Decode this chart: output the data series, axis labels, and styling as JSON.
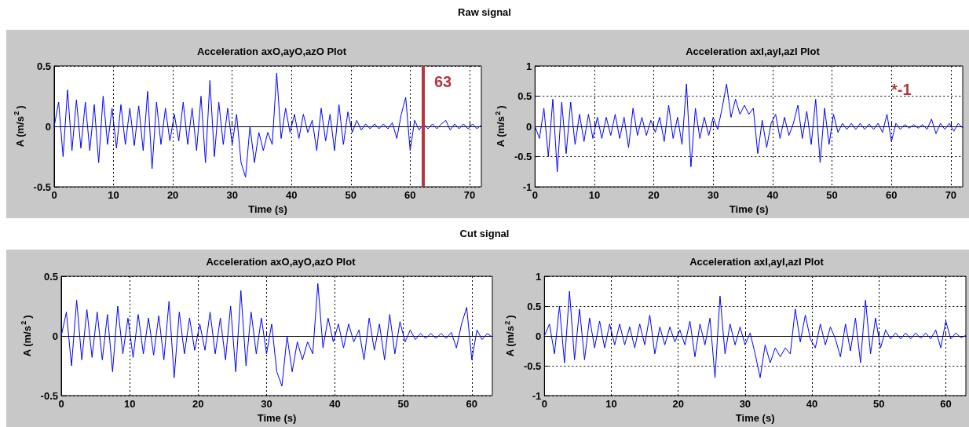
{
  "chart_data": [
    {
      "type": "other",
      "title": "Raw signal"
    },
    {
      "type": "line",
      "title": "Acceleration axO,ayO,azO Plot",
      "xlabel": "Time (s)",
      "ylabel": "A (m/s$^{2}$)",
      "xlim": [
        0,
        72
      ],
      "xticks": [
        0,
        10,
        20,
        30,
        40,
        50,
        60,
        70
      ],
      "ylim": [
        -0.5,
        0.5
      ],
      "yticks": [
        -0.5,
        0,
        0.5
      ],
      "grid": true,
      "ref_lines": [
        {
          "axis": "x",
          "value": 62.2,
          "color": "#b5373f"
        }
      ],
      "annotations": [
        "63"
      ],
      "series": [
        {
          "color": "#0000ff",
          "x": [
            0,
            0.75,
            1.5,
            2.25,
            3,
            3.75,
            4.5,
            5.25,
            6,
            6.75,
            7.5,
            8.25,
            9,
            9.75,
            10.5,
            11.25,
            12,
            12.75,
            13.5,
            14.25,
            15,
            15.75,
            16.5,
            17.25,
            18,
            18.75,
            19.5,
            20.25,
            21,
            21.75,
            22.5,
            23.25,
            24,
            24.75,
            25.5,
            26.25,
            27,
            27.75,
            28.5,
            29.25,
            30,
            30.75,
            31.5,
            32.25,
            33,
            33.75,
            34.5,
            35.25,
            36,
            36.75,
            37.5,
            38.25,
            39,
            39.75,
            40.5,
            41.25,
            42,
            42.75,
            43.5,
            44.25,
            45,
            45.75,
            46.5,
            47.25,
            48,
            48.75,
            49.5,
            50.25,
            51,
            51.75,
            52.5,
            53.25,
            54,
            54.75,
            55.5,
            56.25,
            57,
            57.75,
            58.5,
            59.25,
            60,
            60.75,
            61.5,
            62.25,
            63,
            63.75,
            64.5,
            65.25,
            66,
            66.75,
            67.5,
            68.25,
            69,
            69.75,
            70.5,
            71.25,
            72
          ],
          "values": [
            0,
            0.2,
            -0.25,
            0.3,
            -0.2,
            0.22,
            -0.18,
            0.2,
            -0.2,
            0.18,
            -0.3,
            0.25,
            -0.15,
            0.15,
            -0.18,
            0.18,
            -0.15,
            0.15,
            -0.16,
            0.17,
            -0.2,
            0.29,
            -0.35,
            0.2,
            -0.15,
            0.15,
            -0.12,
            0.1,
            -0.12,
            0.2,
            -0.15,
            0.15,
            -0.2,
            0.25,
            -0.3,
            0.38,
            -0.25,
            0.2,
            -0.15,
            0.15,
            -0.15,
            0.1,
            -0.3,
            -0.42,
            0,
            -0.3,
            -0.05,
            -0.2,
            -0.05,
            -0.15,
            0.44,
            -0.1,
            0.15,
            -0.05,
            0.1,
            -0.1,
            0.1,
            -0.05,
            0.05,
            -0.2,
            0.15,
            -0.12,
            0.1,
            -0.2,
            0.18,
            -0.15,
            0.12,
            -0.05,
            0.05,
            -0.03,
            0.02,
            -0.02,
            0.02,
            -0.02,
            0.02,
            -0.02,
            0.03,
            -0.1,
            0.1,
            0.24,
            -0.2,
            0.05,
            -0.03,
            0.02,
            -0.02,
            0.02,
            -0.02,
            0.02,
            0.05,
            -0.03,
            0.02,
            -0.02,
            0.02,
            -0.02,
            0.02,
            -0.02,
            0.01
          ]
        }
      ]
    },
    {
      "type": "line",
      "title": "Acceleration axI,ayI,azI Plot",
      "xlabel": "Time (s)",
      "ylabel": "A (m/s$^{2}$)",
      "xlim": [
        0,
        72
      ],
      "xticks": [
        0,
        10,
        20,
        30,
        40,
        50,
        60,
        70
      ],
      "ylim": [
        -1,
        1
      ],
      "yticks": [
        -1,
        -0.5,
        0,
        0.5,
        1
      ],
      "grid": true,
      "annotations": [
        "*-1"
      ],
      "series": [
        {
          "color": "#0000ff",
          "x": [
            0,
            0.75,
            1.5,
            2.25,
            3,
            3.75,
            4.5,
            5.25,
            6,
            6.75,
            7.5,
            8.25,
            9,
            9.75,
            10.5,
            11.25,
            12,
            12.75,
            13.5,
            14.25,
            15,
            15.75,
            16.5,
            17.25,
            18,
            18.75,
            19.5,
            20.25,
            21,
            21.75,
            22.5,
            23.25,
            24,
            24.75,
            25.5,
            26.25,
            27,
            27.75,
            28.5,
            29.25,
            30,
            30.75,
            31.5,
            32.25,
            33,
            33.75,
            34.5,
            35.25,
            36,
            36.75,
            37.5,
            38.25,
            39,
            39.75,
            40.5,
            41.25,
            42,
            42.75,
            43.5,
            44.25,
            45,
            45.75,
            46.5,
            47.25,
            48,
            48.75,
            49.5,
            50.25,
            51,
            51.75,
            52.5,
            53.25,
            54,
            54.75,
            55.5,
            56.25,
            57,
            57.75,
            58.5,
            59.25,
            60,
            60.75,
            61.5,
            62.25,
            63,
            63.75,
            64.5,
            65.25,
            66,
            66.75,
            67.5,
            68.25,
            69,
            69.75,
            70.5,
            71.25,
            72
          ],
          "values": [
            0,
            -0.2,
            0.3,
            -0.5,
            0.45,
            -0.75,
            0.4,
            -0.45,
            0.4,
            -0.3,
            0.2,
            -0.25,
            0.2,
            -0.2,
            0.15,
            -0.2,
            0.15,
            -0.15,
            0.2,
            -0.2,
            0.15,
            -0.35,
            0.3,
            -0.15,
            0.15,
            -0.15,
            0.1,
            -0.1,
            0.15,
            -0.25,
            0.35,
            -0.2,
            0.15,
            -0.3,
            0.7,
            -0.67,
            0.3,
            -0.2,
            0.15,
            -0.15,
            0.15,
            -0.05,
            0.3,
            0.7,
            0.15,
            0.45,
            0.2,
            0.35,
            0.2,
            0.3,
            -0.45,
            0.1,
            -0.35,
            0.05,
            0.2,
            -0.2,
            0.15,
            -0.15,
            0.05,
            0.35,
            -0.2,
            0.25,
            -0.3,
            0.45,
            -0.6,
            0.3,
            -0.3,
            0.2,
            -0.1,
            0.05,
            -0.05,
            0.05,
            -0.05,
            0.05,
            -0.05,
            0.04,
            -0.05,
            0.05,
            -0.1,
            0.2,
            -0.25,
            0.05,
            -0.05,
            0.03,
            -0.03,
            0.03,
            -0.03,
            0.03,
            -0.05,
            0.12,
            -0.12,
            0.05,
            -0.05,
            0.05,
            -0.08,
            0.05,
            -0.03
          ]
        }
      ]
    },
    {
      "type": "other",
      "title": "Cut signal"
    },
    {
      "type": "line",
      "title": "Acceleration axO,ayO,azO Plot",
      "xlabel": "Time (s)",
      "ylabel": "A (m/s$^{2}$)",
      "xlim": [
        0,
        63
      ],
      "xticks": [
        0,
        10,
        20,
        30,
        40,
        50,
        60
      ],
      "ylim": [
        -0.5,
        0.5
      ],
      "yticks": [
        -0.5,
        0,
        0.5
      ],
      "grid": true,
      "series": [
        {
          "color": "#0000ff",
          "x": [
            0,
            0.75,
            1.5,
            2.25,
            3,
            3.75,
            4.5,
            5.25,
            6,
            6.75,
            7.5,
            8.25,
            9,
            9.75,
            10.5,
            11.25,
            12,
            12.75,
            13.5,
            14.25,
            15,
            15.75,
            16.5,
            17.25,
            18,
            18.75,
            19.5,
            20.25,
            21,
            21.75,
            22.5,
            23.25,
            24,
            24.75,
            25.5,
            26.25,
            27,
            27.75,
            28.5,
            29.25,
            30,
            30.75,
            31.5,
            32.25,
            33,
            33.75,
            34.5,
            35.25,
            36,
            36.75,
            37.5,
            38.25,
            39,
            39.75,
            40.5,
            41.25,
            42,
            42.75,
            43.5,
            44.25,
            45,
            45.75,
            46.5,
            47.25,
            48,
            48.75,
            49.5,
            50.25,
            51,
            51.75,
            52.5,
            53.25,
            54,
            54.75,
            55.5,
            56.25,
            57,
            57.75,
            58.5,
            59.25,
            60,
            60.75,
            61.5,
            62.25,
            63
          ],
          "values": [
            0,
            0.2,
            -0.25,
            0.3,
            -0.2,
            0.22,
            -0.18,
            0.2,
            -0.2,
            0.18,
            -0.3,
            0.25,
            -0.15,
            0.15,
            -0.18,
            0.18,
            -0.15,
            0.15,
            -0.16,
            0.17,
            -0.2,
            0.29,
            -0.35,
            0.2,
            -0.15,
            0.15,
            -0.12,
            0.1,
            -0.12,
            0.2,
            -0.15,
            0.15,
            -0.2,
            0.25,
            -0.3,
            0.38,
            -0.25,
            0.2,
            -0.15,
            0.15,
            -0.15,
            0.1,
            -0.3,
            -0.42,
            0,
            -0.3,
            -0.05,
            -0.2,
            -0.05,
            -0.15,
            0.44,
            -0.1,
            0.15,
            -0.05,
            0.1,
            -0.1,
            0.1,
            -0.05,
            0.05,
            -0.2,
            0.15,
            -0.12,
            0.1,
            -0.2,
            0.18,
            -0.15,
            0.12,
            -0.05,
            0.05,
            -0.03,
            0.02,
            -0.02,
            0.02,
            -0.02,
            0.02,
            -0.02,
            0.03,
            -0.1,
            0.1,
            0.24,
            -0.2,
            0.05,
            -0.03,
            0.02,
            -0.01
          ]
        }
      ]
    },
    {
      "type": "line",
      "title": "Acceleration axI,ayI,azI Plot",
      "xlabel": "Time (s)",
      "ylabel": "A (m/s$^{2}$)",
      "xlim": [
        0,
        63
      ],
      "xticks": [
        0,
        10,
        20,
        30,
        40,
        50,
        60
      ],
      "ylim": [
        -1,
        1
      ],
      "yticks": [
        -1,
        -0.5,
        0,
        0.5,
        1
      ],
      "grid": true,
      "series": [
        {
          "color": "#0000ff",
          "x": [
            0,
            0.75,
            1.5,
            2.25,
            3,
            3.75,
            4.5,
            5.25,
            6,
            6.75,
            7.5,
            8.25,
            9,
            9.75,
            10.5,
            11.25,
            12,
            12.75,
            13.5,
            14.25,
            15,
            15.75,
            16.5,
            17.25,
            18,
            18.75,
            19.5,
            20.25,
            21,
            21.75,
            22.5,
            23.25,
            24,
            24.75,
            25.5,
            26.25,
            27,
            27.75,
            28.5,
            29.25,
            30,
            30.75,
            31.5,
            32.25,
            33,
            33.75,
            34.5,
            35.25,
            36,
            36.75,
            37.5,
            38.25,
            39,
            39.75,
            40.5,
            41.25,
            42,
            42.75,
            43.5,
            44.25,
            45,
            45.75,
            46.5,
            47.25,
            48,
            48.75,
            49.5,
            50.25,
            51,
            51.75,
            52.5,
            53.25,
            54,
            54.75,
            55.5,
            56.25,
            57,
            57.75,
            58.5,
            59.25,
            60,
            60.75,
            61.5,
            62.25,
            63
          ],
          "values": [
            0,
            0.2,
            -0.3,
            0.5,
            -0.45,
            0.75,
            -0.4,
            0.45,
            -0.4,
            0.3,
            -0.2,
            0.25,
            -0.2,
            0.2,
            -0.15,
            0.2,
            -0.15,
            0.15,
            -0.2,
            0.2,
            -0.15,
            0.35,
            -0.3,
            0.15,
            -0.15,
            0.15,
            -0.1,
            0.1,
            -0.15,
            0.25,
            -0.35,
            0.2,
            -0.15,
            0.3,
            -0.7,
            0.67,
            -0.3,
            0.2,
            -0.15,
            0.15,
            -0.15,
            0.05,
            -0.3,
            -0.7,
            -0.15,
            -0.45,
            -0.2,
            -0.35,
            -0.2,
            -0.3,
            0.45,
            -0.1,
            0.35,
            -0.05,
            -0.2,
            0.2,
            -0.15,
            0.15,
            -0.05,
            -0.35,
            0.2,
            -0.25,
            0.3,
            -0.45,
            0.6,
            -0.3,
            0.3,
            -0.2,
            0.1,
            -0.05,
            0.05,
            -0.05,
            0.05,
            -0.05,
            0.05,
            -0.04,
            0.05,
            -0.05,
            0.1,
            -0.2,
            0.25,
            -0.05,
            0.05,
            -0.03,
            0.01
          ]
        }
      ]
    }
  ]
}
